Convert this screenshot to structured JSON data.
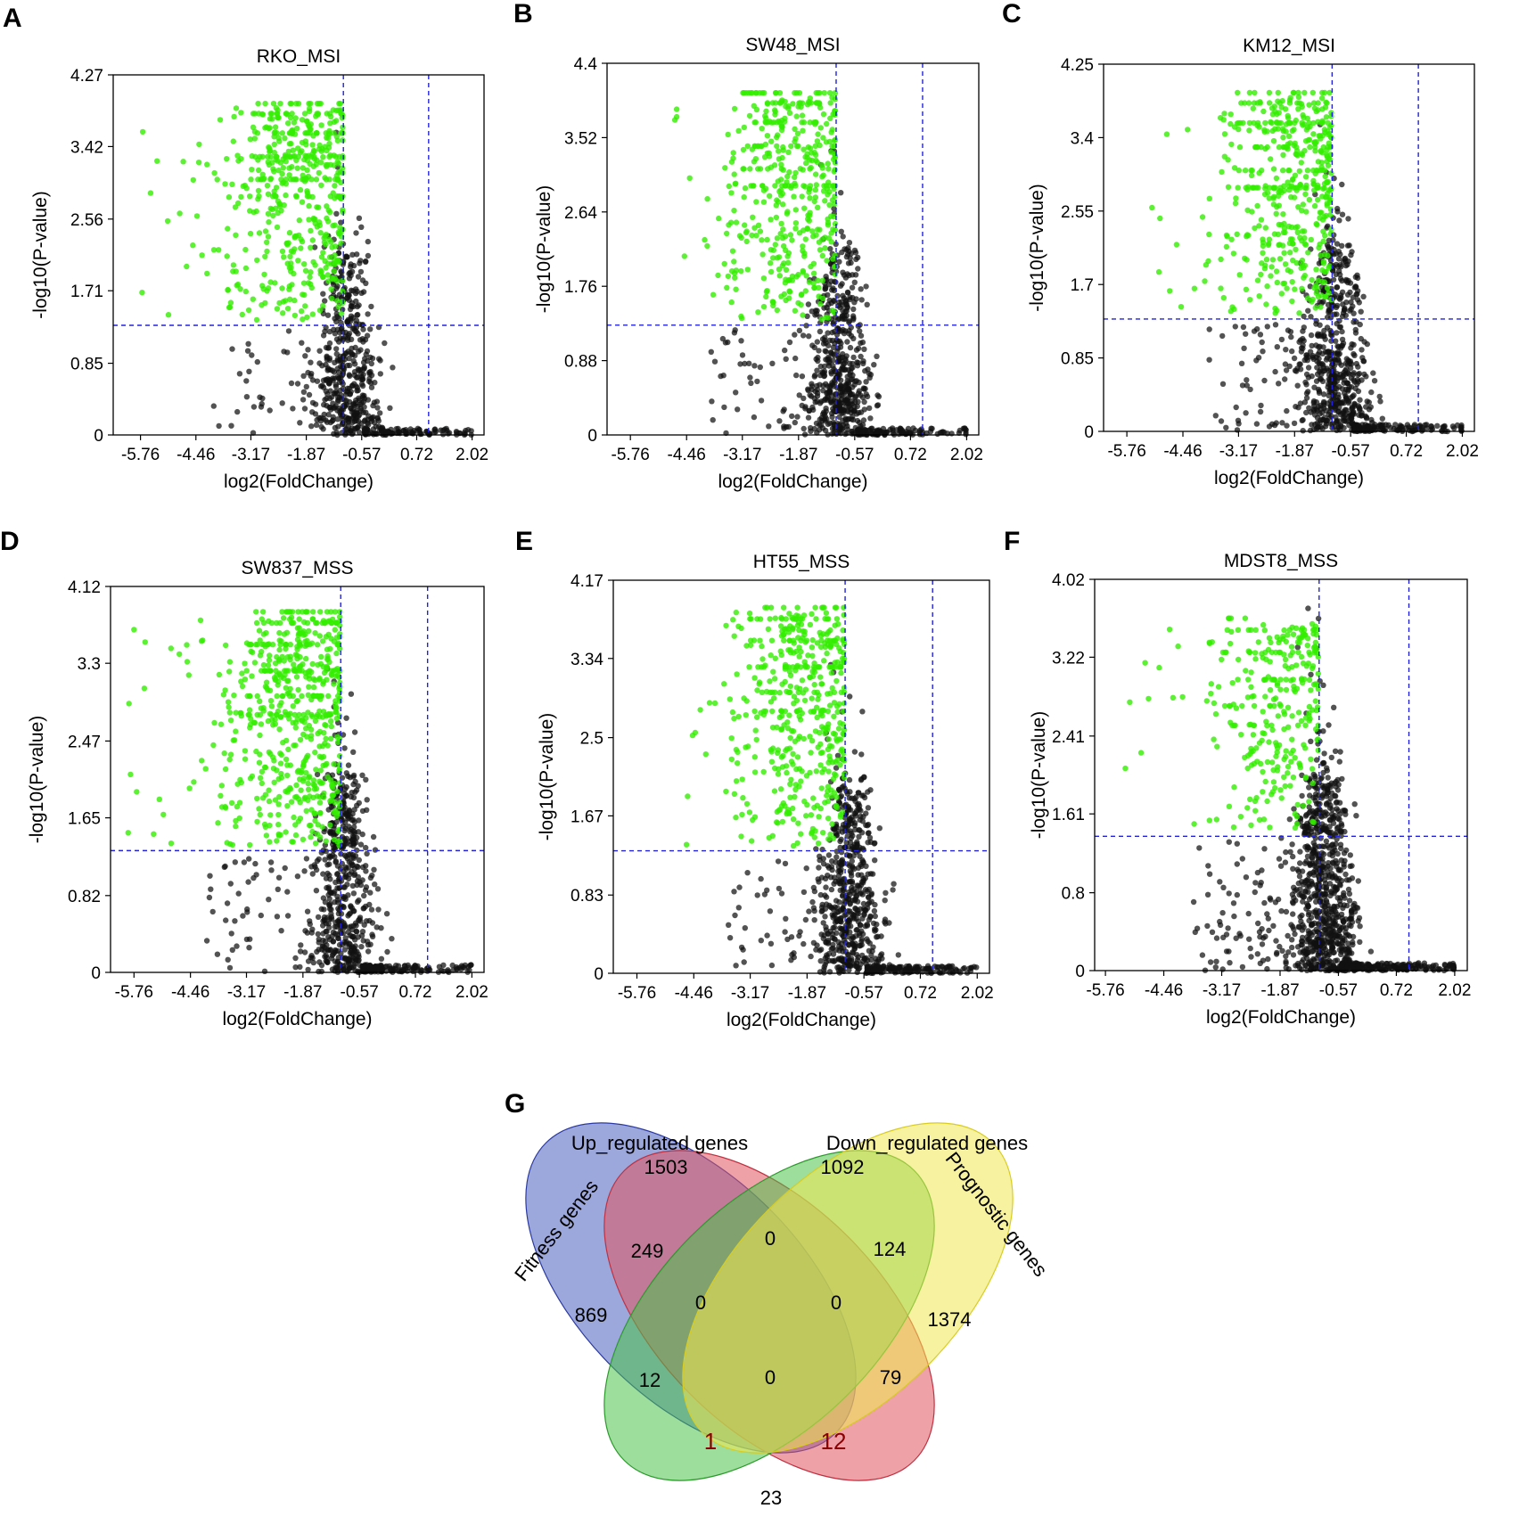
{
  "figure": {
    "panels": [
      {
        "letter": "A",
        "title": "RKO_MSI"
      },
      {
        "letter": "B",
        "title": "SW48_MSI"
      },
      {
        "letter": "C",
        "title": "KM12_MSI"
      },
      {
        "letter": "D",
        "title": "SW837_MSS"
      },
      {
        "letter": "E",
        "title": "HT55_MSS"
      },
      {
        "letter": "F",
        "title": "MDST8_MSS"
      }
    ],
    "venn_letter": "G"
  },
  "colors": {
    "significant_points": "#33ee00",
    "nonsignificant_points": "#111111",
    "threshold_lines": "#2222dd",
    "venn_fitness": "#4b5fc0",
    "venn_up": "#e05560",
    "venn_down": "#4cc24c",
    "venn_prognostic": "#f0e850"
  },
  "chart_data": [
    {
      "type": "scatter",
      "title": "RKO_MSI",
      "xlabel": "log2(FoldChange)",
      "ylabel": "-log10(P-value)",
      "xlim": [
        -6.4,
        2.3
      ],
      "ylim": [
        0,
        4.27
      ],
      "xticks": [
        -5.76,
        -4.46,
        -3.17,
        -1.87,
        -0.57,
        0.72,
        2.02
      ],
      "xtick_labels": [
        "-5.76",
        "-4.46",
        "-3.17",
        "-1.87",
        "-0.57",
        "0.72",
        "2.02"
      ],
      "yticks": [
        0,
        0.85,
        1.71,
        2.56,
        3.42,
        4.27
      ],
      "ytick_labels": [
        "0",
        "0.85",
        "1.71",
        "2.56",
        "3.42",
        "4.27"
      ],
      "fc_thresholds": [
        -1,
        1
      ],
      "p_threshold": 1.3,
      "dist": {
        "xmin": -5.9,
        "xsig": -2.5,
        "ymax": 3.93,
        "ymaxSig": 3.93,
        "nsig": 520,
        "nns": 620
      }
    },
    {
      "type": "scatter",
      "title": "SW48_MSI",
      "xlabel": "log2(FoldChange)",
      "ylabel": "-log10(P-value)",
      "xlim": [
        -6.3,
        2.3
      ],
      "ylim": [
        0,
        4.4
      ],
      "xticks": [
        -5.76,
        -4.46,
        -3.17,
        -1.87,
        -0.57,
        0.72,
        2.02
      ],
      "xtick_labels": [
        "-5.76",
        "-4.46",
        "-3.17",
        "-1.87",
        "-0.57",
        "0.72",
        "2.02"
      ],
      "yticks": [
        0,
        0.88,
        1.76,
        2.64,
        3.52,
        4.4
      ],
      "ytick_labels": [
        "0",
        "0.88",
        "1.76",
        "2.64",
        "3.52",
        "4.4"
      ],
      "fc_thresholds": [
        -1,
        1
      ],
      "p_threshold": 1.3,
      "dist": {
        "xmin": -4.9,
        "xsig": -2.3,
        "ymax": 4.05,
        "ymaxSig": 4.05,
        "nsig": 450,
        "nns": 700
      }
    },
    {
      "type": "scatter",
      "title": "KM12_MSI",
      "xlabel": "log2(FoldChange)",
      "ylabel": "-log10(P-value)",
      "xlim": [
        -6.3,
        2.3
      ],
      "ylim": [
        0,
        4.25
      ],
      "xticks": [
        -5.76,
        -4.46,
        -3.17,
        -1.87,
        -0.57,
        0.72,
        2.02
      ],
      "xtick_labels": [
        "-5.76",
        "-4.46",
        "-3.17",
        "-1.87",
        "-0.57",
        "0.72",
        "2.02"
      ],
      "yticks": [
        0,
        0.85,
        1.7,
        2.55,
        3.4,
        4.25
      ],
      "ytick_labels": [
        "0",
        "0.85",
        "1.7",
        "2.55",
        "3.4",
        "4.25"
      ],
      "fc_thresholds": [
        -1,
        1
      ],
      "p_threshold": 1.3,
      "dist": {
        "xmin": -5.2,
        "xsig": -2.3,
        "ymax": 3.92,
        "ymaxSig": 3.92,
        "nsig": 480,
        "nns": 760
      }
    },
    {
      "type": "scatter",
      "title": "SW837_MSS",
      "xlabel": "log2(FoldChange)",
      "ylabel": "-log10(P-value)",
      "xlim": [
        -6.3,
        2.3
      ],
      "ylim": [
        0,
        4.12
      ],
      "xticks": [
        -5.76,
        -4.46,
        -3.17,
        -1.87,
        -0.57,
        0.72,
        2.02
      ],
      "xtick_labels": [
        "-5.76",
        "-4.46",
        "-3.17",
        "-1.87",
        "-0.57",
        "0.72",
        "2.02"
      ],
      "yticks": [
        0,
        0.82,
        1.65,
        2.47,
        3.3,
        4.12
      ],
      "ytick_labels": [
        "0",
        "0.82",
        "1.65",
        "2.47",
        "3.3",
        "4.12"
      ],
      "fc_thresholds": [
        -1,
        1
      ],
      "p_threshold": 1.3,
      "dist": {
        "xmin": -5.9,
        "xsig": -2.5,
        "ymax": 3.85,
        "ymaxSig": 3.85,
        "nsig": 620,
        "nns": 720
      }
    },
    {
      "type": "scatter",
      "title": "HT55_MSS",
      "xlabel": "log2(FoldChange)",
      "ylabel": "-log10(P-value)",
      "xlim": [
        -6.3,
        2.3
      ],
      "ylim": [
        0,
        4.17
      ],
      "xticks": [
        -5.76,
        -4.46,
        -3.17,
        -1.87,
        -0.57,
        0.72,
        2.02
      ],
      "xtick_labels": [
        "-5.76",
        "-4.46",
        "-3.17",
        "-1.87",
        "-0.57",
        "0.72",
        "2.02"
      ],
      "yticks": [
        0,
        0.83,
        1.67,
        2.5,
        3.34,
        4.17
      ],
      "ytick_labels": [
        "0",
        "0.83",
        "1.67",
        "2.5",
        "3.34",
        "4.17"
      ],
      "fc_thresholds": [
        -1,
        1
      ],
      "p_threshold": 1.3,
      "dist": {
        "xmin": -4.7,
        "xsig": -2.3,
        "ymax": 3.88,
        "ymaxSig": 3.88,
        "nsig": 480,
        "nns": 760
      }
    },
    {
      "type": "scatter",
      "title": "MDST8_MSS",
      "xlabel": "log2(FoldChange)",
      "ylabel": "-log10(P-value)",
      "xlim": [
        -6.0,
        2.3
      ],
      "ylim": [
        0,
        4.02
      ],
      "xticks": [
        -5.76,
        -4.46,
        -3.17,
        -1.87,
        -0.57,
        0.72,
        2.02
      ],
      "xtick_labels": [
        "-5.76",
        "-4.46",
        "-3.17",
        "-1.87",
        "-0.57",
        "0.72",
        "2.02"
      ],
      "yticks": [
        0,
        0.8,
        1.61,
        2.41,
        3.22,
        4.02
      ],
      "ytick_labels": [
        "0",
        "0.8",
        "1.61",
        "2.41",
        "3.22",
        "4.02"
      ],
      "fc_thresholds": [
        -1,
        1
      ],
      "p_threshold": 1.38,
      "dist": {
        "xmin": -5.5,
        "xsig": -2.2,
        "ymax": 3.62,
        "ymaxSig": 3.62,
        "nsig": 300,
        "nns": 1050
      }
    },
    {
      "type": "venn",
      "sets": [
        "Fitness genes",
        "Up_regulated genes",
        "Down_regulated genes",
        "Prognostic genes"
      ],
      "regions": [
        {
          "sets": [
            "Fitness genes"
          ],
          "count": 869
        },
        {
          "sets": [
            "Up_regulated genes"
          ],
          "count": 1503
        },
        {
          "sets": [
            "Down_regulated genes"
          ],
          "count": 1092
        },
        {
          "sets": [
            "Prognostic genes"
          ],
          "count": 1374
        },
        {
          "sets": [
            "Fitness genes",
            "Up_regulated genes"
          ],
          "count": 249
        },
        {
          "sets": [
            "Up_regulated genes",
            "Down_regulated genes"
          ],
          "count": 0
        },
        {
          "sets": [
            "Down_regulated genes",
            "Prognostic genes"
          ],
          "count": 124
        },
        {
          "sets": [
            "Fitness genes",
            "Up_regulated genes",
            "Down_regulated genes"
          ],
          "count": 0
        },
        {
          "sets": [
            "Up_regulated genes",
            "Down_regulated genes",
            "Prognostic genes"
          ],
          "count": 0
        },
        {
          "sets": [
            "Fitness genes",
            "Down_regulated genes"
          ],
          "count": 12
        },
        {
          "sets": [
            "Fitness genes",
            "Up_regulated genes",
            "Down_regulated genes",
            "Prognostic genes"
          ],
          "count": 0
        },
        {
          "sets": [
            "Up_regulated genes",
            "Prognostic genes"
          ],
          "count": 79
        },
        {
          "sets": [
            "Fitness genes",
            "Down_regulated genes",
            "Prognostic genes"
          ],
          "count": 1
        },
        {
          "sets": [
            "Fitness genes",
            "Up_regulated genes",
            "Prognostic genes"
          ],
          "count": 12
        },
        {
          "sets": [
            "Fitness genes",
            "Prognostic genes"
          ],
          "count": 23
        }
      ]
    }
  ]
}
